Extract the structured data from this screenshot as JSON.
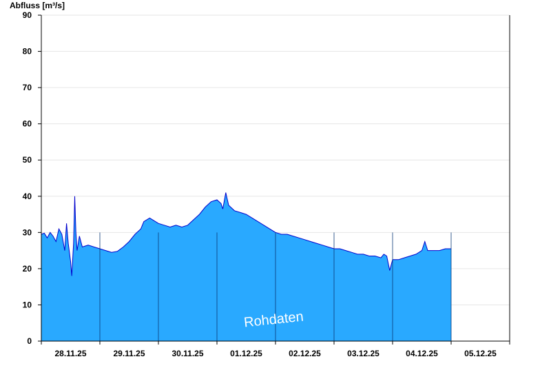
{
  "chart_data": {
    "type": "area",
    "ylabel": "Abfluss [m³/s]",
    "ylim": [
      0,
      90
    ],
    "yticks": [
      0,
      10,
      20,
      30,
      40,
      50,
      60,
      70,
      80,
      90
    ],
    "x_labels": [
      "28.11.25",
      "29.11.25",
      "30.11.25",
      "01.12.25",
      "02.12.25",
      "03.12.25",
      "04.12.25",
      "05.12.25"
    ],
    "watermark": "Rohdaten",
    "grid": true,
    "colors": {
      "fill": "#29a9ff",
      "line": "#0000cc",
      "grid": "#e6e6e6",
      "daysep": "#0b3a78"
    },
    "series": [
      {
        "x_unit": "days since start of 27.11.25",
        "points": [
          [
            0.5,
            29.5
          ],
          [
            0.55,
            29.8
          ],
          [
            0.6,
            28.5
          ],
          [
            0.65,
            30.0
          ],
          [
            0.7,
            29.0
          ],
          [
            0.75,
            27.5
          ],
          [
            0.8,
            31.0
          ],
          [
            0.85,
            29.5
          ],
          [
            0.9,
            25.0
          ],
          [
            0.93,
            32.5
          ],
          [
            0.96,
            27.0
          ],
          [
            1.0,
            22.0
          ],
          [
            1.02,
            18.0
          ],
          [
            1.05,
            27.0
          ],
          [
            1.07,
            40.0
          ],
          [
            1.09,
            30.0
          ],
          [
            1.11,
            25.0
          ],
          [
            1.15,
            29.0
          ],
          [
            1.2,
            26.0
          ],
          [
            1.3,
            26.5
          ],
          [
            1.4,
            26.0
          ],
          [
            1.5,
            25.5
          ],
          [
            1.6,
            25.0
          ],
          [
            1.7,
            24.5
          ],
          [
            1.8,
            24.8
          ],
          [
            1.9,
            26.0
          ],
          [
            2.0,
            27.5
          ],
          [
            2.1,
            29.5
          ],
          [
            2.2,
            31.0
          ],
          [
            2.25,
            33.0
          ],
          [
            2.35,
            34.0
          ],
          [
            2.4,
            33.5
          ],
          [
            2.5,
            32.5
          ],
          [
            2.6,
            32.0
          ],
          [
            2.7,
            31.5
          ],
          [
            2.8,
            32.0
          ],
          [
            2.9,
            31.5
          ],
          [
            3.0,
            32.0
          ],
          [
            3.1,
            33.5
          ],
          [
            3.2,
            35.0
          ],
          [
            3.3,
            37.0
          ],
          [
            3.4,
            38.5
          ],
          [
            3.5,
            39.0
          ],
          [
            3.57,
            38.0
          ],
          [
            3.6,
            36.5
          ],
          [
            3.65,
            41.0
          ],
          [
            3.7,
            37.5
          ],
          [
            3.8,
            36.0
          ],
          [
            3.9,
            35.5
          ],
          [
            4.0,
            35.0
          ],
          [
            4.1,
            34.0
          ],
          [
            4.2,
            33.0
          ],
          [
            4.3,
            32.0
          ],
          [
            4.4,
            31.0
          ],
          [
            4.5,
            30.0
          ],
          [
            4.6,
            29.5
          ],
          [
            4.7,
            29.5
          ],
          [
            4.8,
            29.0
          ],
          [
            4.9,
            28.5
          ],
          [
            5.0,
            28.0
          ],
          [
            5.1,
            27.5
          ],
          [
            5.2,
            27.0
          ],
          [
            5.3,
            26.5
          ],
          [
            5.4,
            26.0
          ],
          [
            5.5,
            25.5
          ],
          [
            5.6,
            25.5
          ],
          [
            5.7,
            25.0
          ],
          [
            5.8,
            24.5
          ],
          [
            5.9,
            24.0
          ],
          [
            6.0,
            24.0
          ],
          [
            6.1,
            23.5
          ],
          [
            6.2,
            23.5
          ],
          [
            6.3,
            23.0
          ],
          [
            6.35,
            24.0
          ],
          [
            6.4,
            23.5
          ],
          [
            6.45,
            19.5
          ],
          [
            6.5,
            22.5
          ],
          [
            6.6,
            22.5
          ],
          [
            6.7,
            23.0
          ],
          [
            6.8,
            23.5
          ],
          [
            6.9,
            24.0
          ],
          [
            7.0,
            25.0
          ],
          [
            7.05,
            27.5
          ],
          [
            7.1,
            25.0
          ],
          [
            7.2,
            25.0
          ],
          [
            7.3,
            25.0
          ],
          [
            7.4,
            25.5
          ],
          [
            7.5,
            25.5
          ]
        ]
      }
    ],
    "xlim": [
      0.5,
      8.5
    ]
  }
}
